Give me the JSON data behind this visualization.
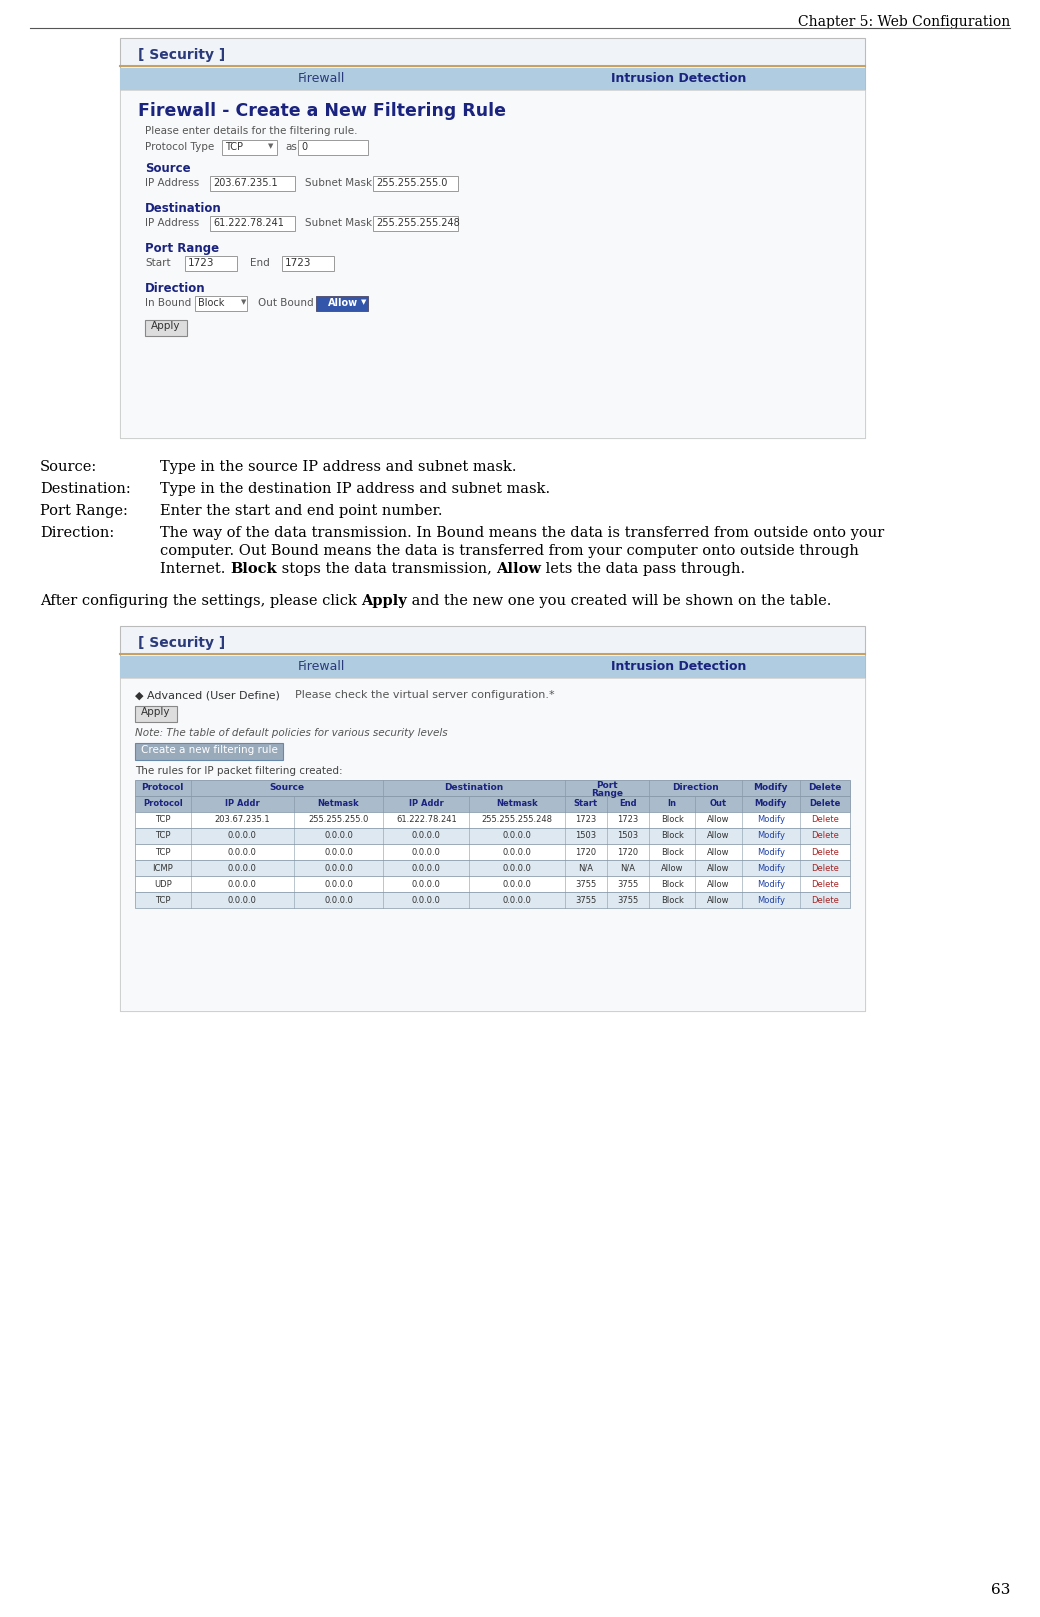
{
  "page_header": "Chapter 5: Web Configuration",
  "page_number": "63",
  "bg_color": "#ffffff",
  "security_label_color": "#2b3a7a",
  "tab_bg": "#a8c4e0",
  "tab_text_color": "#2b3a7a",
  "tab_text_bold_color": "#1a237e",
  "section_title_color": "#1a237e",
  "orange_line": "#cc8844",
  "blue_btn_bg": "#3355aa",
  "table_header_bg": "#aabbcc",
  "table_header_color": "#1a237e",
  "table_row_bg": [
    "#ffffff",
    "#dde8f0"
  ],
  "table_border": "#8899aa",
  "modify_color": "#2244aa",
  "delete_color": "#aa2222",
  "firewall_title": "Firewall - Create a New Filtering Rule",
  "please_text": "Please enter details for the filtering rule.",
  "source_ip": "203.67.235.1",
  "source_mask": "255.255.255.0",
  "dest_ip": "61.222.78.241",
  "dest_mask": "255.255.255.248",
  "start_val": "1723",
  "end_val": "1723",
  "desc_rows": [
    {
      "key": "Source:",
      "val": "Type in the source IP address and subnet mask."
    },
    {
      "key": "Destination:",
      "val": "Type in the destination IP address and subnet mask."
    },
    {
      "key": "Port Range:",
      "val": "Enter the start and end point number."
    },
    {
      "key": "Direction:",
      "val": "The way of the data transmission. In Bound means the data is transferred from outside onto your\ncomputer. Out Bound means the data is transferred from your computer onto outside through\nInternet. [Block] stops the data transmission, [Allow] lets the data pass through."
    }
  ],
  "after_text1": "After configuring the settings, please click ",
  "after_text_bold": "Apply",
  "after_text2": " and the new one you created will be shown on the table.",
  "advanced_radio": "◆ Advanced (User Define)",
  "please_check": "Please check the virtual server configuration.*",
  "note_text": "Note: The table of default policies for various security levels",
  "create_btn": "Create a new filtering rule",
  "rules_text": "The rules for IP packet filtering created:",
  "table_rows": [
    [
      "TCP",
      "203.67.235.1",
      "255.255.255.0",
      "61.222.78.241",
      "255.255.255.248",
      "1723",
      "1723",
      "Block",
      "Allow",
      "Modify",
      "Delete"
    ],
    [
      "TCP",
      "0.0.0.0",
      "0.0.0.0",
      "0.0.0.0",
      "0.0.0.0",
      "1503",
      "1503",
      "Block",
      "Allow",
      "Modify",
      "Delete"
    ],
    [
      "TCP",
      "0.0.0.0",
      "0.0.0.0",
      "0.0.0.0",
      "0.0.0.0",
      "1720",
      "1720",
      "Block",
      "Allow",
      "Modify",
      "Delete"
    ],
    [
      "ICMP",
      "0.0.0.0",
      "0.0.0.0",
      "0.0.0.0",
      "0.0.0.0",
      "N/A",
      "N/A",
      "Allow",
      "Allow",
      "Modify",
      "Delete"
    ],
    [
      "UDP",
      "0.0.0.0",
      "0.0.0.0",
      "0.0.0.0",
      "0.0.0.0",
      "3755",
      "3755",
      "Block",
      "Allow",
      "Modify",
      "Delete"
    ],
    [
      "TCP",
      "0.0.0.0",
      "0.0.0.0",
      "0.0.0.0",
      "0.0.0.0",
      "3755",
      "3755",
      "Block",
      "Allow",
      "Modify",
      "Delete"
    ]
  ]
}
